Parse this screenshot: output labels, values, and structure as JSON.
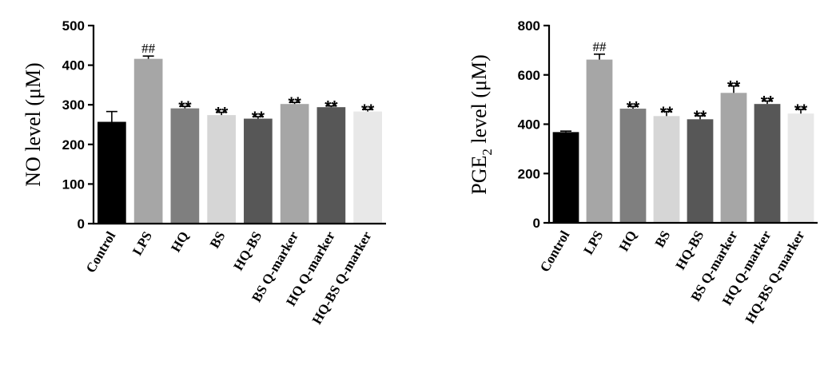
{
  "chart_data": [
    {
      "type": "bar",
      "title": "",
      "xlabel": "",
      "ylabel": "NO level (μM)",
      "ylim": [
        0,
        500
      ],
      "yticks": [
        "0",
        "100",
        "200",
        "300",
        "400",
        "500"
      ],
      "categories": [
        "Control",
        "LPS",
        "HQ",
        "BS",
        "HQ-BS",
        "BS Q-marker",
        "HQ Q-marker",
        "HQ-BS Q-marker"
      ],
      "values": [
        257,
        416,
        291,
        274,
        265,
        302,
        294,
        283
      ],
      "errors": [
        26,
        7,
        5,
        7,
        5,
        4,
        3,
        5
      ],
      "annotations": [
        "",
        "##",
        "**",
        "**",
        "**",
        "**",
        "**",
        "**"
      ],
      "colors": [
        "#000000",
        "#a6a6a6",
        "#7f7f7f",
        "#d6d6d6",
        "#575757",
        "#a6a6a6",
        "#575757",
        "#e8e8e8"
      ],
      "grid": false,
      "legend": "none"
    },
    {
      "type": "bar",
      "title": "",
      "xlabel": "",
      "ylabel_main": "PGE",
      "ylabel_sub": "2",
      "ylabel_rest": " level (μM)",
      "ylim": [
        0,
        800
      ],
      "yticks": [
        "0",
        "200",
        "400",
        "600",
        "800"
      ],
      "categories": [
        "Control",
        "LPS",
        "HQ",
        "BS",
        "HQ-BS",
        "BS Q-marker",
        "HQ Q-marker",
        "HQ-BS Q-marker"
      ],
      "values": [
        368,
        662,
        463,
        433,
        420,
        527,
        482,
        443
      ],
      "errors": [
        4,
        22,
        9,
        18,
        14,
        28,
        12,
        17
      ],
      "annotations": [
        "",
        "##",
        "**",
        "**",
        "**",
        "**",
        "**",
        "**"
      ],
      "colors": [
        "#000000",
        "#a6a6a6",
        "#7f7f7f",
        "#d6d6d6",
        "#575757",
        "#a6a6a6",
        "#575757",
        "#e8e8e8"
      ],
      "grid": false,
      "legend": "none"
    }
  ]
}
